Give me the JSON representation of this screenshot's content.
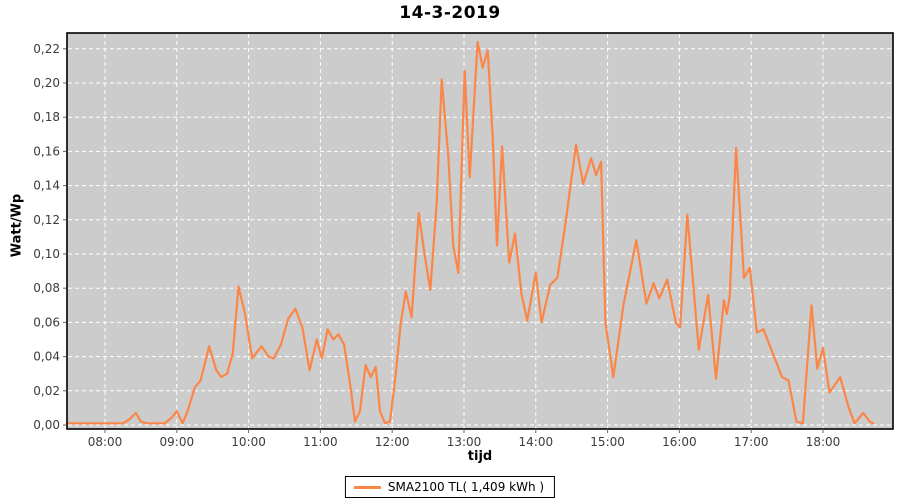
{
  "chart_data": {
    "type": "line",
    "title": "14-3-2019",
    "xlabel": "tijd",
    "ylabel": "Watt/Wp",
    "grid": true,
    "x_range_hours": [
      7.471,
      18.974
    ],
    "ylim": [
      0,
      0.2292
    ],
    "x_tick_hours": [
      8,
      9,
      10,
      11,
      12,
      13,
      14,
      15,
      16,
      17,
      18
    ],
    "x_tick_labels": [
      "08:00",
      "09:00",
      "10:00",
      "11:00",
      "12:00",
      "13:00",
      "14:00",
      "15:00",
      "16:00",
      "17:00",
      "18:00"
    ],
    "y_ticks": [
      0.0,
      0.02,
      0.04,
      0.06,
      0.08,
      0.1,
      0.12,
      0.14,
      0.16,
      0.18,
      0.2,
      0.22
    ],
    "y_tick_labels": [
      "0,00",
      "0,02",
      "0,04",
      "0,06",
      "0,08",
      "0,10",
      "0,12",
      "0,14",
      "0,16",
      "0,18",
      "0,20",
      "0,22"
    ],
    "legend": {
      "position": "bottom",
      "entries": [
        {
          "label": "SMA2100 TL( 1,409 kWh )",
          "color": "#fb8647"
        }
      ]
    },
    "colors": {
      "page_bg": "#ffffff",
      "plot_bg": "#cccccc",
      "grid": "#ffffff",
      "line": "#fb8647",
      "border": "#000000",
      "tick_text": "#3c3c3c"
    },
    "series": [
      {
        "name": "SMA2100 TL( 1,409 kWh )",
        "color": "#fb8647",
        "points_hours_vs_wattwp": [
          [
            7.471,
            0.001
          ],
          [
            7.58,
            0.001
          ],
          [
            7.67,
            0.001
          ],
          [
            7.75,
            0.001
          ],
          [
            7.83,
            0.001
          ],
          [
            7.92,
            0.001
          ],
          [
            8.0,
            0.001
          ],
          [
            8.08,
            0.001
          ],
          [
            8.17,
            0.001
          ],
          [
            8.25,
            0.001
          ],
          [
            8.33,
            0.003
          ],
          [
            8.43,
            0.007
          ],
          [
            8.5,
            0.002
          ],
          [
            8.58,
            0.001
          ],
          [
            8.67,
            0.001
          ],
          [
            8.75,
            0.001
          ],
          [
            8.83,
            0.001
          ],
          [
            8.92,
            0.004
          ],
          [
            9.0,
            0.008
          ],
          [
            9.08,
            0.001
          ],
          [
            9.15,
            0.008
          ],
          [
            9.25,
            0.022
          ],
          [
            9.33,
            0.026
          ],
          [
            9.45,
            0.046
          ],
          [
            9.55,
            0.032
          ],
          [
            9.62,
            0.028
          ],
          [
            9.7,
            0.03
          ],
          [
            9.78,
            0.042
          ],
          [
            9.86,
            0.081
          ],
          [
            9.95,
            0.065
          ],
          [
            10.05,
            0.039
          ],
          [
            10.18,
            0.046
          ],
          [
            10.28,
            0.04
          ],
          [
            10.35,
            0.039
          ],
          [
            10.45,
            0.047
          ],
          [
            10.55,
            0.062
          ],
          [
            10.65,
            0.068
          ],
          [
            10.75,
            0.057
          ],
          [
            10.85,
            0.032
          ],
          [
            10.95,
            0.05
          ],
          [
            11.02,
            0.039
          ],
          [
            11.1,
            0.056
          ],
          [
            11.18,
            0.05
          ],
          [
            11.25,
            0.053
          ],
          [
            11.33,
            0.047
          ],
          [
            11.42,
            0.022
          ],
          [
            11.48,
            0.002
          ],
          [
            11.55,
            0.008
          ],
          [
            11.63,
            0.035
          ],
          [
            11.7,
            0.028
          ],
          [
            11.77,
            0.034
          ],
          [
            11.83,
            0.008
          ],
          [
            11.9,
            0.001
          ],
          [
            11.97,
            0.002
          ],
          [
            12.05,
            0.03
          ],
          [
            12.12,
            0.06
          ],
          [
            12.19,
            0.078
          ],
          [
            12.27,
            0.063
          ],
          [
            12.37,
            0.124
          ],
          [
            12.45,
            0.1
          ],
          [
            12.53,
            0.079
          ],
          [
            12.62,
            0.13
          ],
          [
            12.69,
            0.202
          ],
          [
            12.78,
            0.158
          ],
          [
            12.85,
            0.105
          ],
          [
            12.92,
            0.089
          ],
          [
            13.01,
            0.207
          ],
          [
            13.08,
            0.145
          ],
          [
            13.19,
            0.224
          ],
          [
            13.26,
            0.209
          ],
          [
            13.33,
            0.219
          ],
          [
            13.4,
            0.168
          ],
          [
            13.46,
            0.105
          ],
          [
            13.53,
            0.163
          ],
          [
            13.63,
            0.095
          ],
          [
            13.71,
            0.112
          ],
          [
            13.8,
            0.077
          ],
          [
            13.88,
            0.061
          ],
          [
            14.0,
            0.089
          ],
          [
            14.08,
            0.06
          ],
          [
            14.2,
            0.082
          ],
          [
            14.3,
            0.086
          ],
          [
            14.42,
            0.12
          ],
          [
            14.56,
            0.164
          ],
          [
            14.66,
            0.141
          ],
          [
            14.77,
            0.156
          ],
          [
            14.84,
            0.146
          ],
          [
            14.91,
            0.154
          ],
          [
            14.97,
            0.06
          ],
          [
            15.08,
            0.028
          ],
          [
            15.22,
            0.07
          ],
          [
            15.4,
            0.108
          ],
          [
            15.54,
            0.071
          ],
          [
            15.64,
            0.083
          ],
          [
            15.72,
            0.074
          ],
          [
            15.83,
            0.085
          ],
          [
            15.95,
            0.06
          ],
          [
            16.01,
            0.057
          ],
          [
            16.11,
            0.123
          ],
          [
            16.27,
            0.044
          ],
          [
            16.4,
            0.076
          ],
          [
            16.51,
            0.027
          ],
          [
            16.62,
            0.073
          ],
          [
            16.66,
            0.065
          ],
          [
            16.7,
            0.075
          ],
          [
            16.79,
            0.162
          ],
          [
            16.9,
            0.086
          ],
          [
            16.98,
            0.092
          ],
          [
            17.08,
            0.054
          ],
          [
            17.17,
            0.056
          ],
          [
            17.3,
            0.042
          ],
          [
            17.43,
            0.028
          ],
          [
            17.52,
            0.026
          ],
          [
            17.63,
            0.002
          ],
          [
            17.72,
            0.001
          ],
          [
            17.84,
            0.07
          ],
          [
            17.92,
            0.033
          ],
          [
            18.0,
            0.045
          ],
          [
            18.09,
            0.019
          ],
          [
            18.24,
            0.028
          ],
          [
            18.36,
            0.01
          ],
          [
            18.44,
            0.001
          ],
          [
            18.56,
            0.007
          ],
          [
            18.65,
            0.002
          ],
          [
            18.7,
            0.001
          ]
        ]
      }
    ]
  }
}
